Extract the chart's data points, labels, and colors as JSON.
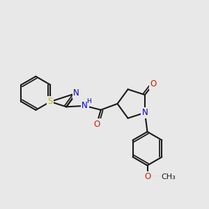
{
  "bg_color": "#e8e8e8",
  "bond_color": "#1a1a1a",
  "S_color": "#b8b800",
  "N_color": "#0000cc",
  "O_color": "#cc2200",
  "bw": 1.5,
  "fs": 8.5,
  "dpi": 100,
  "fw": 3.0,
  "fh": 3.0,
  "xlim": [
    0.5,
    10.5
  ],
  "ylim": [
    1.5,
    8.5
  ]
}
